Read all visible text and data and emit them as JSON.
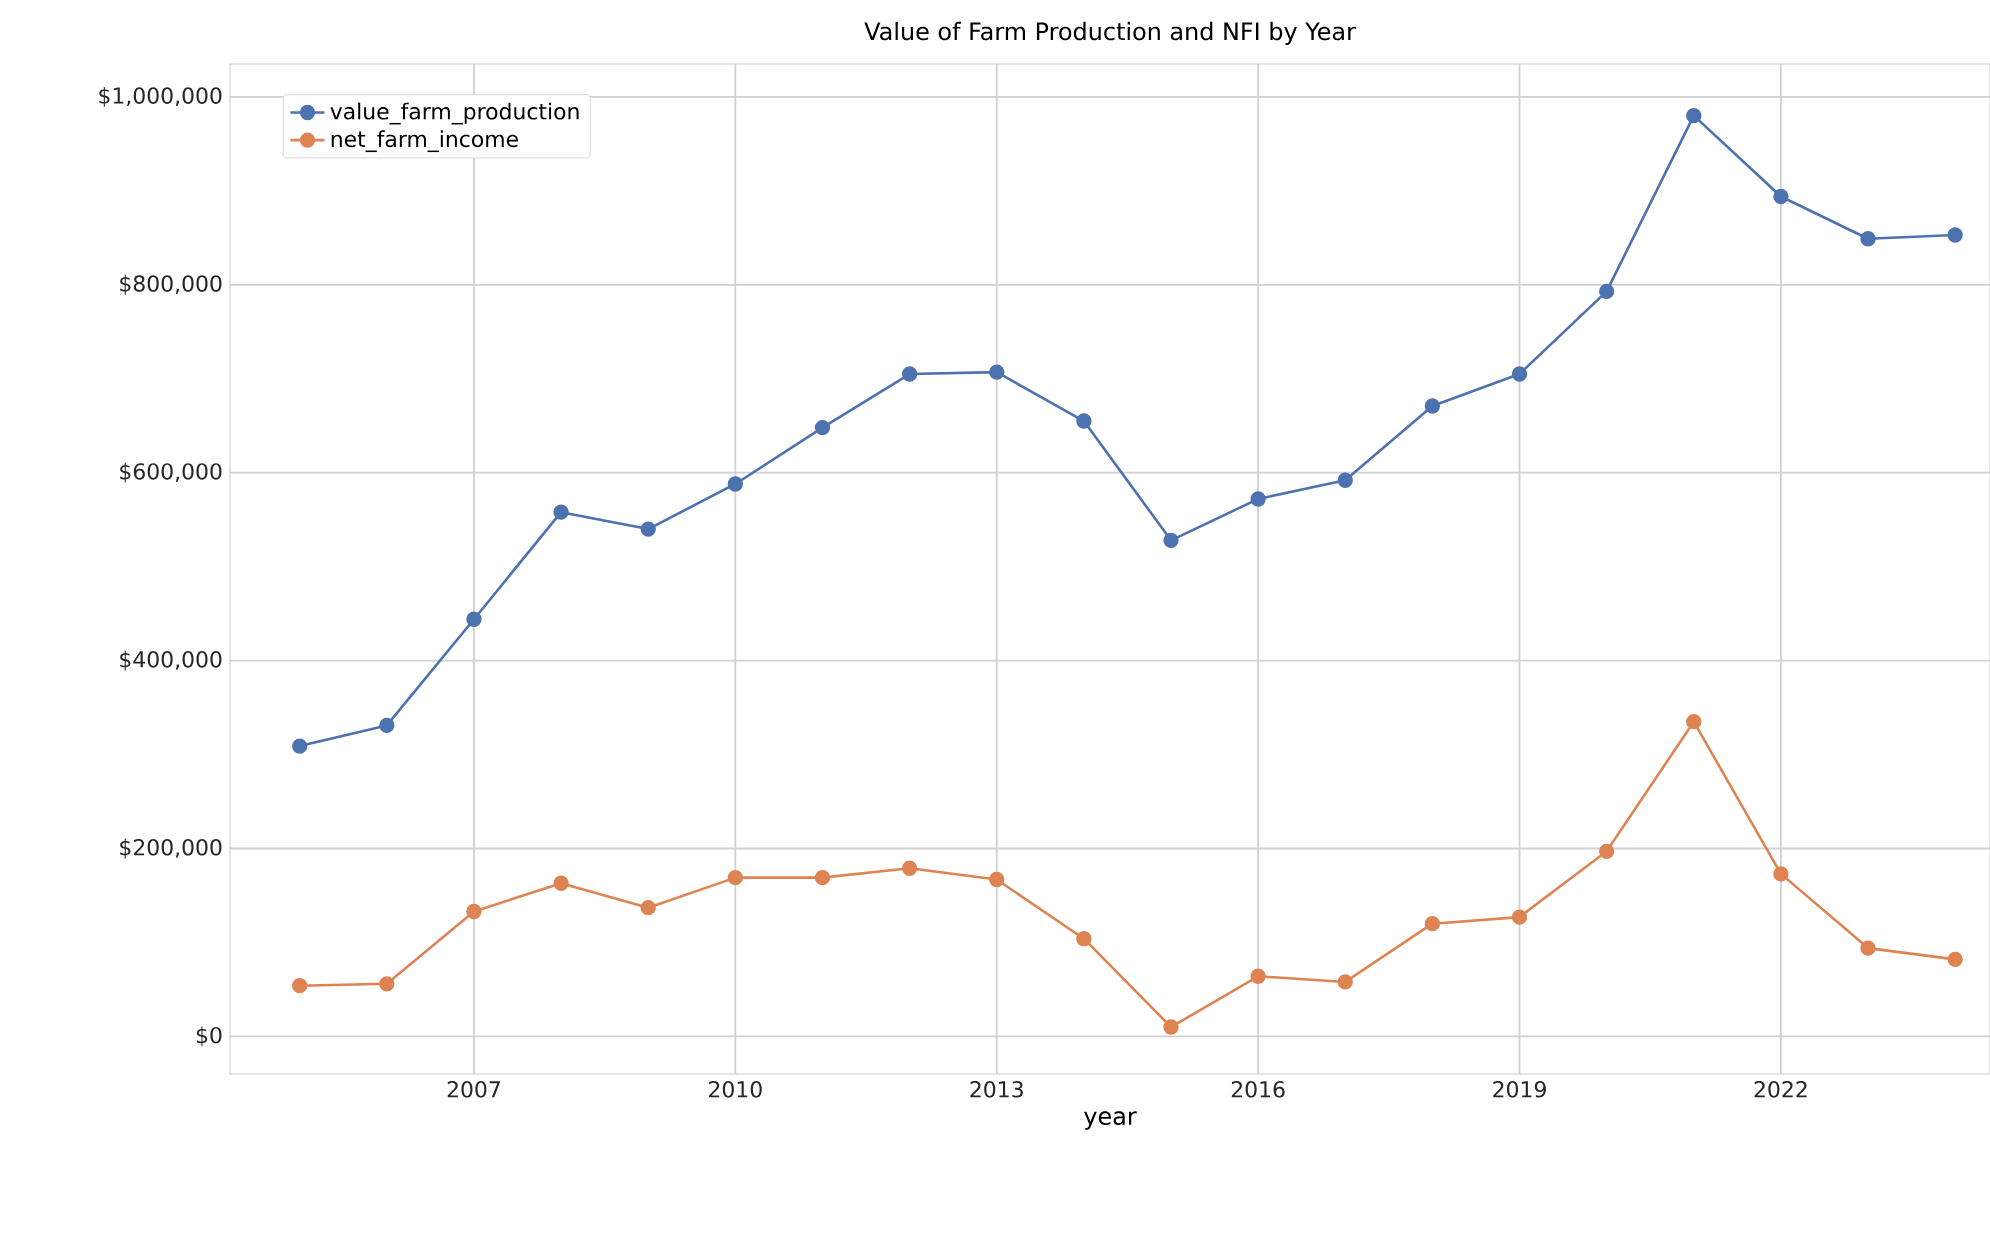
{
  "chart_data": {
    "type": "line",
    "title": "Value of Farm Production and NFI by Year",
    "xlabel": "year",
    "x": [
      2005,
      2006,
      2007,
      2008,
      2009,
      2010,
      2011,
      2012,
      2013,
      2014,
      2015,
      2016,
      2017,
      2018,
      2019,
      2020,
      2021,
      2022,
      2023,
      2024
    ],
    "series": [
      {
        "name": "value_farm_production",
        "color": "#4c72b0",
        "values": [
          309000,
          331000,
          444000,
          558000,
          540000,
          588000,
          648000,
          705000,
          707000,
          655000,
          528000,
          572000,
          592000,
          671000,
          705000,
          793000,
          980000,
          894000,
          849000,
          853000
        ]
      },
      {
        "name": "net_farm_income",
        "color": "#dd8452",
        "values": [
          54000,
          56000,
          133000,
          163000,
          137000,
          169000,
          169000,
          179000,
          167000,
          104000,
          10000,
          64000,
          58000,
          120000,
          127000,
          197000,
          335000,
          173000,
          94000,
          82000
        ]
      }
    ],
    "xlim": [
      2004.2,
      2024.4
    ],
    "ylim": [
      -40000,
      1035000
    ],
    "xticks": [
      2007,
      2010,
      2013,
      2016,
      2019,
      2022
    ],
    "yticks": [
      {
        "value": 0,
        "label": "$0"
      },
      {
        "value": 200000,
        "label": "$200,000"
      },
      {
        "value": 400000,
        "label": "$400,000"
      },
      {
        "value": 600000,
        "label": "$600,000"
      },
      {
        "value": 800000,
        "label": "$800,000"
      },
      {
        "value": 1000000,
        "label": "$1,000,000"
      }
    ],
    "grid": true,
    "legend": "top left",
    "marker": "circle",
    "line_style": "solid"
  }
}
